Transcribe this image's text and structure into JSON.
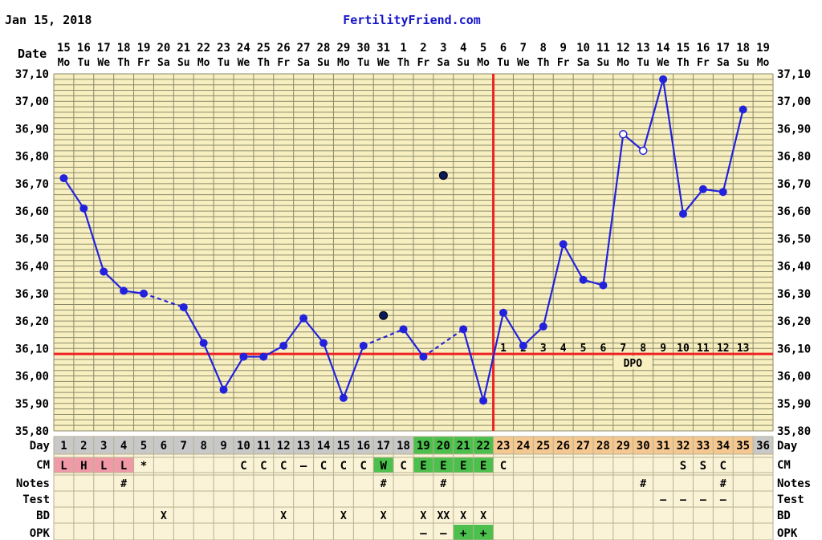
{
  "header": {
    "date": "Jan 15, 2018",
    "site": "FertilityFriend.com"
  },
  "labels": {
    "date": "Date",
    "day": "Day",
    "cm": "CM",
    "notes": "Notes",
    "test": "Test",
    "bd": "BD",
    "opk": "OPK",
    "dpo": "DPO"
  },
  "colors": {
    "background": "#f8efc0",
    "grid": "#8a8a6a",
    "temp_line": "#2222dd",
    "coverline": "#ee2222",
    "cycle_row": "#c8c8c8",
    "period_cell": "#f09aa8",
    "egg_white_cell": "#4cc04c",
    "luteal_cell": "#f6c891",
    "table_bg": "#faf3d7"
  },
  "chart_data": {
    "type": "line",
    "title": "",
    "ylabel": "",
    "ylim": [
      35.8,
      37.1
    ],
    "yticks": [
      "35,80",
      "35,90",
      "36,00",
      "36,10",
      "36,20",
      "36,30",
      "36,40",
      "36,50",
      "36,60",
      "36,70",
      "36,80",
      "36,90",
      "37,00",
      "37,10"
    ],
    "dates": [
      "15",
      "16",
      "17",
      "18",
      "19",
      "20",
      "21",
      "22",
      "23",
      "24",
      "25",
      "26",
      "27",
      "28",
      "29",
      "30",
      "31",
      "1",
      "2",
      "3",
      "4",
      "5",
      "6",
      "7",
      "8",
      "9",
      "10",
      "11",
      "12",
      "13",
      "14",
      "15",
      "16",
      "17",
      "18",
      "19"
    ],
    "weekdays": [
      "Mo",
      "Tu",
      "We",
      "Th",
      "Fr",
      "Sa",
      "Su",
      "Mo",
      "Tu",
      "We",
      "Th",
      "Fr",
      "Sa",
      "Su",
      "Mo",
      "Tu",
      "We",
      "Th",
      "Fr",
      "Sa",
      "Su",
      "Mo",
      "Tu",
      "We",
      "Th",
      "Fr",
      "Sa",
      "Su",
      "Mo",
      "Tu",
      "We",
      "Th",
      "Fr",
      "Sa",
      "Su",
      "Mo"
    ],
    "cycle_days": [
      "1",
      "2",
      "3",
      "4",
      "5",
      "6",
      "7",
      "8",
      "9",
      "10",
      "11",
      "12",
      "13",
      "14",
      "15",
      "16",
      "17",
      "18",
      "19",
      "20",
      "21",
      "22",
      "23",
      "24",
      "25",
      "26",
      "27",
      "28",
      "29",
      "30",
      "31",
      "32",
      "33",
      "34",
      "35",
      "36"
    ],
    "temperatures": [
      36.72,
      36.61,
      36.38,
      36.31,
      36.3,
      null,
      36.25,
      36.12,
      35.95,
      36.07,
      36.07,
      36.11,
      36.21,
      36.12,
      35.92,
      36.11,
      null,
      36.17,
      36.07,
      null,
      36.17,
      35.91,
      36.23,
      36.11,
      36.18,
      36.48,
      36.35,
      36.33,
      36.88,
      36.82,
      37.08,
      36.59,
      36.68,
      36.67,
      36.97,
      null
    ],
    "open_points": [
      28,
      29
    ],
    "discarded": [
      {
        "day": 17,
        "temp": 36.22
      },
      {
        "day": 20,
        "temp": 36.73
      }
    ],
    "coverline": 36.08,
    "ovulation_day": 22,
    "dpo": [
      "1",
      "2",
      "3",
      "4",
      "5",
      "6",
      "7",
      "8",
      "9",
      "10",
      "11",
      "12",
      "13"
    ],
    "cm": [
      "L",
      "H",
      "L",
      "L",
      "*",
      "",
      "",
      "",
      "",
      "C",
      "C",
      "C",
      "–",
      "C",
      "C",
      "C",
      "W",
      "C",
      "E",
      "E",
      "E",
      "E",
      "C",
      "",
      "",
      "",
      "",
      "",
      "",
      "",
      "",
      "S",
      "S",
      "C",
      "",
      ""
    ],
    "notes": [
      "",
      "",
      "",
      "#",
      "",
      "",
      "",
      "",
      "",
      "",
      "",
      "",
      "",
      "",
      "",
      "",
      "#",
      "",
      "",
      "#",
      "",
      "",
      "",
      "",
      "",
      "",
      "",
      "",
      "",
      "#",
      "",
      "",
      "",
      "#",
      "",
      ""
    ],
    "test": [
      "",
      "",
      "",
      "",
      "",
      "",
      "",
      "",
      "",
      "",
      "",
      "",
      "",
      "",
      "",
      "",
      "",
      "",
      "",
      "",
      "",
      "",
      "",
      "",
      "",
      "",
      "",
      "",
      "",
      "",
      "–",
      "–",
      "–",
      "–",
      "",
      ""
    ],
    "bd": [
      "",
      "",
      "",
      "",
      "",
      "X",
      "",
      "",
      "",
      "",
      "",
      "X",
      "",
      "",
      "X",
      "",
      "X",
      "",
      "X",
      "XX",
      "X",
      "X",
      "",
      "",
      "",
      "",
      "",
      "",
      "",
      "",
      "",
      "",
      "",
      "",
      "",
      ""
    ],
    "opk": [
      "",
      "",
      "",
      "",
      "",
      "",
      "",
      "",
      "",
      "",
      "",
      "",
      "",
      "",
      "",
      "",
      "",
      "",
      "–",
      "–",
      "+",
      "+",
      "",
      "",
      "",
      "",
      "",
      "",
      "",
      "",
      "",
      "",
      "",
      "",
      "",
      ""
    ]
  }
}
